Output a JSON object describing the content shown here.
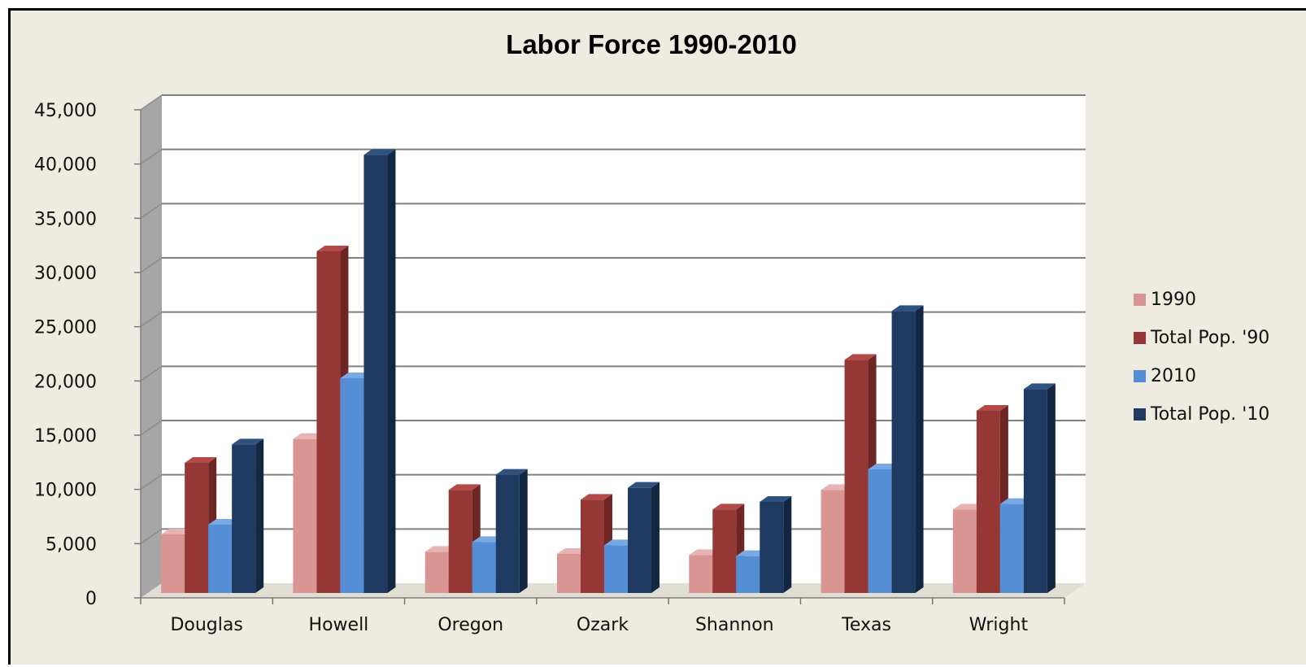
{
  "chart_data": {
    "type": "bar",
    "title": "Labor Force 1990-2010",
    "xlabel": "",
    "ylabel": "",
    "categories": [
      "Douglas",
      "Howell",
      "Oregon",
      "Ozark",
      "Shannon",
      "Texas",
      "Wright"
    ],
    "series": [
      {
        "name": "1990",
        "values": [
          5400,
          14200,
          3800,
          3600,
          3500,
          9500,
          7700
        ],
        "color": "#d99594",
        "side": "#b97574",
        "top": "#e8b4b3"
      },
      {
        "name": "Total Pop. '90",
        "values": [
          12000,
          31500,
          9500,
          8600,
          7700,
          21500,
          16800
        ],
        "color": "#953735",
        "side": "#6e2624",
        "top": "#b24a48"
      },
      {
        "name": "2010",
        "values": [
          6300,
          19800,
          4700,
          4400,
          3400,
          11400,
          8200
        ],
        "color": "#558ed5",
        "side": "#3b6eae",
        "top": "#7aa8e2"
      },
      {
        "name": "Total Pop. '10",
        "values": [
          13700,
          40400,
          10900,
          9700,
          8400,
          26000,
          18800
        ],
        "color": "#1f3a60",
        "side": "#142742",
        "top": "#2e5180"
      }
    ],
    "ylim": [
      0,
      45000
    ],
    "yticks": [
      "0",
      "5,000",
      "10,000",
      "15,000",
      "20,000",
      "25,000",
      "30,000",
      "35,000",
      "40,000",
      "45,000"
    ],
    "grid": true,
    "legend_position": "right",
    "colors": {
      "background": "#eeebe0",
      "plot_back": "#ffffff",
      "side_wall": "#a6a6a6",
      "floor": "#e0ddd2",
      "gridline": "#808080"
    }
  }
}
